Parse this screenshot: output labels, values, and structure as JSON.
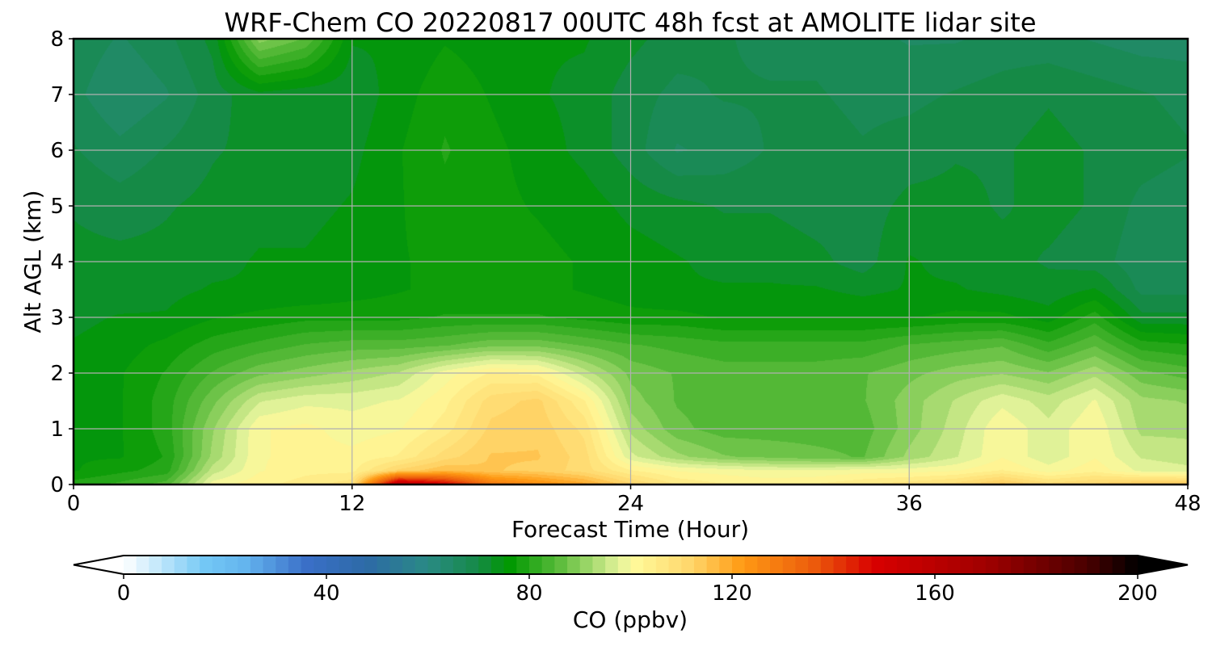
{
  "chart_data": {
    "type": "heatmap",
    "title": "WRF-Chem CO  20220817 00UTC 48h fcst at AMOLITE lidar site",
    "xlabel": "Forecast Time (Hour)",
    "ylabel": "Alt AGL (km)",
    "xlim": [
      0,
      48
    ],
    "ylim": [
      0,
      8
    ],
    "xticks": [
      0,
      12,
      24,
      36,
      48
    ],
    "yticks": [
      0,
      1,
      2,
      3,
      4,
      5,
      6,
      7,
      8
    ],
    "grid": true,
    "x": [
      0,
      2,
      4,
      6,
      8,
      10,
      12,
      14,
      16,
      18,
      20,
      22,
      24,
      26,
      28,
      30,
      32,
      34,
      36,
      38,
      40,
      42,
      44,
      46,
      48
    ],
    "y": [
      0,
      0.25,
      0.5,
      1,
      1.5,
      2,
      2.5,
      3,
      3.5,
      4,
      5,
      6,
      7,
      8
    ],
    "z": [
      [
        80,
        82,
        85,
        100,
        103,
        105,
        108,
        160,
        150,
        130,
        125,
        120,
        112,
        106,
        104,
        103,
        104,
        106,
        108,
        110,
        115,
        110,
        112,
        115,
        115
      ],
      [
        76,
        78,
        80,
        95,
        101,
        103,
        103,
        112,
        116,
        114,
        113,
        110,
        104,
        101,
        100,
        99,
        99,
        100,
        100,
        101,
        104,
        100,
        103,
        98,
        97
      ],
      [
        76,
        76,
        79,
        92,
        101,
        102,
        102,
        104,
        110,
        114,
        114,
        110,
        97,
        92,
        89,
        88,
        87,
        86,
        92,
        96,
        101,
        97,
        101,
        96,
        95
      ],
      [
        76,
        76,
        80,
        91,
        101,
        102,
        100,
        101,
        105,
        112,
        113,
        108,
        93,
        87,
        85,
        85,
        85,
        85,
        90,
        95,
        101,
        97,
        101,
        93,
        93
      ],
      [
        75,
        76,
        80,
        88,
        96,
        98,
        98,
        99,
        103,
        110,
        112,
        104,
        90,
        86,
        85,
        85,
        85,
        86,
        90,
        94,
        98,
        95,
        99,
        92,
        91
      ],
      [
        75,
        76,
        79,
        84,
        88,
        90,
        92,
        94,
        100,
        104,
        103,
        95,
        88,
        86,
        85,
        85,
        85,
        86,
        88,
        90,
        91,
        89,
        93,
        87,
        85
      ],
      [
        74,
        75,
        77,
        80,
        82,
        84,
        85,
        85,
        86,
        88,
        88,
        86,
        84,
        83,
        82,
        82,
        82,
        82,
        84,
        85,
        86,
        82,
        86,
        80,
        79
      ],
      [
        73,
        74,
        74,
        76,
        77,
        78,
        78,
        78,
        79,
        79,
        79,
        78,
        77,
        77,
        76,
        76,
        76,
        76,
        76,
        77,
        77,
        75,
        80,
        72,
        72
      ],
      [
        72,
        72,
        73,
        74,
        74,
        74,
        75,
        76,
        77,
        77,
        77,
        76,
        75,
        74,
        74,
        74,
        74,
        73,
        74,
        74,
        73,
        72,
        74,
        68,
        68
      ],
      [
        72,
        72,
        72,
        73,
        74,
        74,
        75,
        76,
        77,
        77,
        77,
        76,
        75,
        74,
        73,
        73,
        72,
        70,
        74,
        73,
        72,
        71,
        70,
        67,
        67
      ],
      [
        71,
        70,
        71,
        72,
        73,
        73,
        74,
        76,
        78,
        77,
        76,
        75,
        73,
        72,
        71,
        71,
        70,
        70,
        72,
        72,
        71,
        72,
        71,
        68,
        67
      ],
      [
        69,
        67,
        69,
        71,
        72,
        72,
        73,
        76,
        79,
        77,
        75,
        73,
        70,
        66,
        67,
        69,
        70,
        69,
        70,
        71,
        71,
        72,
        71,
        70,
        69
      ],
      [
        67,
        64,
        66,
        70,
        73,
        72,
        72,
        75,
        78,
        76,
        74,
        73,
        70,
        68,
        69,
        69,
        69,
        68,
        68,
        69,
        70,
        71,
        70,
        69,
        68
      ],
      [
        68,
        66,
        68,
        72,
        90,
        86,
        74,
        74,
        76,
        75,
        74,
        74,
        72,
        70,
        69,
        68,
        68,
        67,
        66,
        66,
        67,
        67,
        66,
        65,
        65
      ]
    ],
    "colorbar": {
      "label": "CO  (ppbv)",
      "min": 0,
      "max": 200,
      "ticks": [
        0,
        40,
        80,
        120,
        160,
        200
      ],
      "extend": "both"
    },
    "colormap_stops": [
      {
        "v": 0,
        "c": "#ffffff"
      },
      {
        "v": 16,
        "c": "#73c8f5"
      },
      {
        "v": 24,
        "c": "#64b4ee"
      },
      {
        "v": 36,
        "c": "#3a6fc8"
      },
      {
        "v": 48,
        "c": "#2d6aa6"
      },
      {
        "v": 60,
        "c": "#2a8a84"
      },
      {
        "v": 70,
        "c": "#158a46"
      },
      {
        "v": 76,
        "c": "#009800"
      },
      {
        "v": 86,
        "c": "#5cbc3c"
      },
      {
        "v": 98,
        "c": "#e6f49c"
      },
      {
        "v": 101,
        "c": "#fff999"
      },
      {
        "v": 112,
        "c": "#ffd66a"
      },
      {
        "v": 122,
        "c": "#ff9a14"
      },
      {
        "v": 136,
        "c": "#ec5c0c"
      },
      {
        "v": 148,
        "c": "#d80000"
      },
      {
        "v": 170,
        "c": "#a00000"
      },
      {
        "v": 190,
        "c": "#4a0000"
      },
      {
        "v": 200,
        "c": "#000000"
      }
    ]
  }
}
